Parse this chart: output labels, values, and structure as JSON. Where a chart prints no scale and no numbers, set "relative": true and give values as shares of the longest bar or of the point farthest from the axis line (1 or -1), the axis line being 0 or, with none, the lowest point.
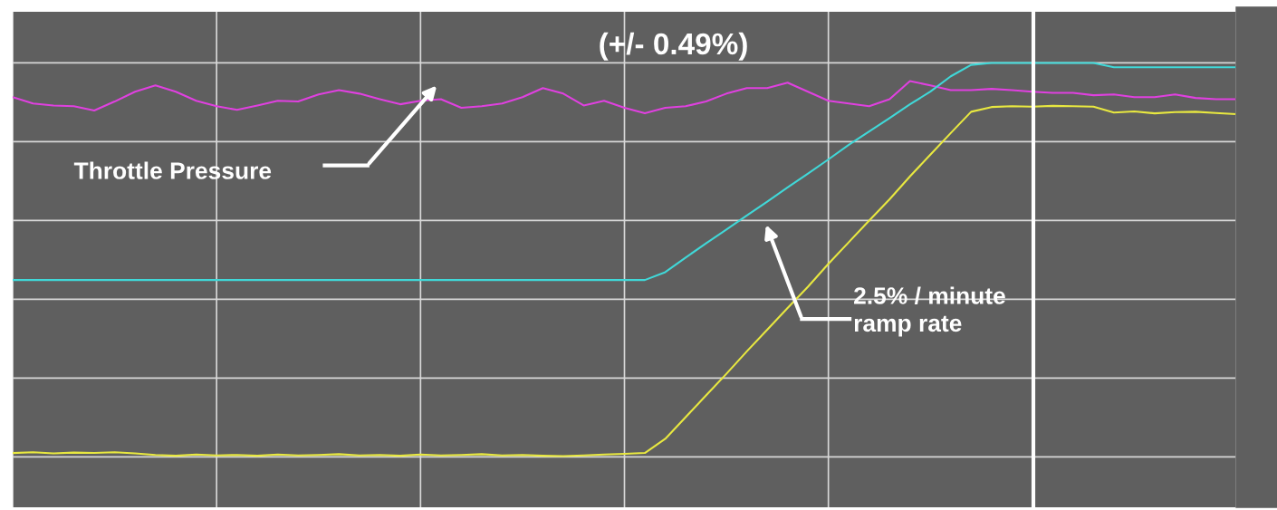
{
  "chart_data": {
    "type": "line",
    "relative": true,
    "grid": true,
    "legend": false,
    "marker": "none",
    "line_style": "solid",
    "categories": [
      null,
      null,
      null,
      null,
      null,
      null,
      null,
      null,
      null,
      null,
      null,
      null,
      null,
      null,
      null,
      null,
      null,
      null,
      null,
      null,
      null,
      null,
      null,
      null,
      null,
      null,
      null,
      null,
      null,
      null,
      null,
      null,
      null,
      null,
      null,
      null,
      null,
      null,
      null,
      null,
      null,
      null,
      null,
      null,
      null,
      null,
      null,
      null,
      null,
      null,
      null,
      null,
      null,
      null,
      null,
      null,
      null,
      null,
      null,
      null,
      null
    ],
    "series": [
      {
        "color": "#e040e0",
        "values": [
          0.913,
          0.897,
          0.892,
          0.89,
          0.879,
          0.902,
          0.927,
          0.943,
          0.927,
          0.904,
          0.89,
          0.881,
          0.892,
          0.904,
          0.902,
          0.92,
          0.931,
          0.922,
          0.908,
          0.895,
          0.904,
          0.908,
          0.886,
          0.89,
          0.897,
          0.913,
          0.936,
          0.922,
          0.892,
          0.904,
          0.886,
          0.872,
          0.886,
          0.89,
          0.902,
          0.922,
          0.936,
          0.936,
          0.95,
          0.927,
          0.904,
          0.897,
          0.89,
          0.908,
          0.954,
          0.943,
          0.931,
          0.931,
          0.934,
          0.931,
          0.927,
          0.924,
          0.924,
          0.918,
          0.92,
          0.913,
          0.913,
          0.92,
          0.911,
          0.908,
          0.908
        ]
      },
      {
        "color": "#40d8d8",
        "values": [
          0.449,
          0.449,
          0.449,
          0.449,
          0.449,
          0.449,
          0.449,
          0.449,
          0.449,
          0.449,
          0.449,
          0.449,
          0.449,
          0.449,
          0.449,
          0.449,
          0.449,
          0.449,
          0.449,
          0.449,
          0.449,
          0.449,
          0.449,
          0.449,
          0.449,
          0.449,
          0.449,
          0.449,
          0.449,
          0.449,
          0.449,
          0.449,
          0.469,
          0.506,
          0.542,
          0.577,
          0.613,
          0.648,
          0.684,
          0.719,
          0.755,
          0.792,
          0.826,
          0.86,
          0.895,
          0.927,
          0.966,
          0.995,
          1.0,
          1.0,
          1.0,
          1.0,
          1.0,
          1.0,
          0.989,
          0.989,
          0.989,
          0.989,
          0.989,
          0.989,
          0.989
        ]
      },
      {
        "color": "#e8e840",
        "values": [
          0.01,
          0.012,
          0.009,
          0.011,
          0.01,
          0.012,
          0.009,
          0.005,
          0.003,
          0.006,
          0.004,
          0.005,
          0.003,
          0.006,
          0.004,
          0.005,
          0.007,
          0.004,
          0.005,
          0.003,
          0.006,
          0.004,
          0.005,
          0.007,
          0.004,
          0.005,
          0.003,
          0.002,
          0.004,
          0.006,
          0.008,
          0.01,
          0.046,
          0.101,
          0.156,
          0.211,
          0.268,
          0.323,
          0.378,
          0.432,
          0.49,
          0.545,
          0.6,
          0.654,
          0.712,
          0.767,
          0.822,
          0.876,
          0.888,
          0.89,
          0.889,
          0.891,
          0.89,
          0.889,
          0.874,
          0.877,
          0.872,
          0.875,
          0.876,
          0.873,
          0.87
        ]
      }
    ],
    "annotations": [
      "(+/- 0.49%)",
      "Throttle Pressure",
      "2.5% / minute\nramp rate"
    ]
  }
}
